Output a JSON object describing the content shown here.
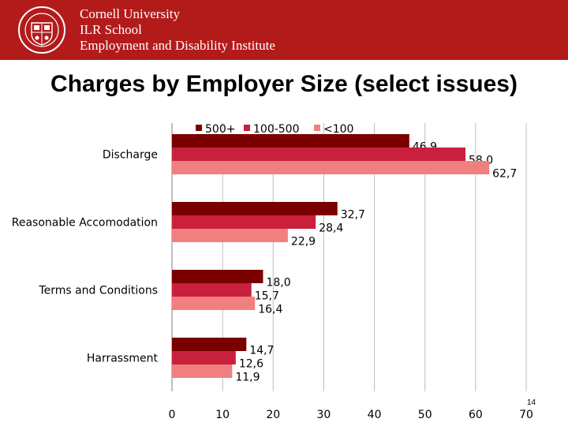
{
  "header": {
    "org_lines": [
      "Cornell University",
      "ILR School",
      "Employment and Disability Institute"
    ],
    "background_color": "#b31b1b",
    "logo_icon": "cornell-seal-icon"
  },
  "slide": {
    "title": "Charges by Employer Size (select issues)",
    "page_number": "14"
  },
  "chart_data": {
    "type": "bar",
    "orientation": "horizontal",
    "title": "",
    "xlabel": "",
    "ylabel": "",
    "categories": [
      "Discharge",
      "Reasonable Accomodation",
      "Terms and Conditions",
      "Harrassment"
    ],
    "series": [
      {
        "name": "500+",
        "color": "#7a0000",
        "values": [
          46.9,
          32.7,
          18.0,
          14.7
        ],
        "labels": [
          "46,9",
          "32,7",
          "18,0",
          "14,7"
        ]
      },
      {
        "name": "100-500",
        "color": "#c8203d",
        "values": [
          58.0,
          28.4,
          15.7,
          12.6
        ],
        "labels": [
          "58,0",
          "28,4",
          "15,7",
          "12,6"
        ]
      },
      {
        "name": "<100",
        "color": "#f08080",
        "values": [
          62.7,
          22.9,
          16.4,
          11.9
        ],
        "labels": [
          "62,7",
          "22,9",
          "16,4",
          "11,9"
        ]
      }
    ],
    "xlim": [
      0,
      70
    ],
    "xticks": [
      0,
      10,
      20,
      30,
      40,
      50,
      60,
      70
    ],
    "grid": true,
    "legend_position": "top"
  }
}
